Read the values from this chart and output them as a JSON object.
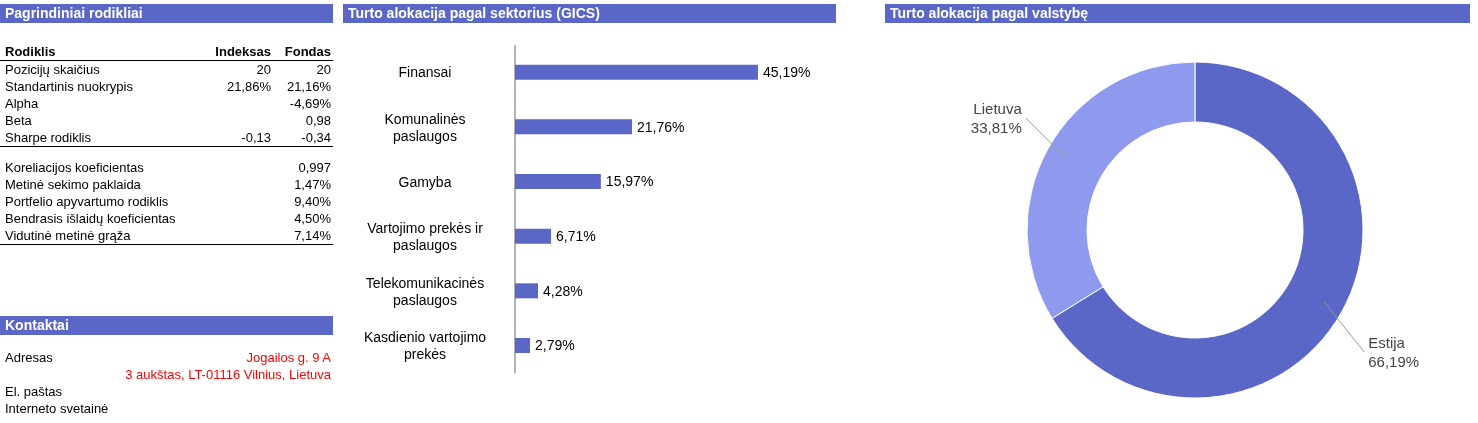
{
  "chart_data": [
    {
      "type": "other",
      "title": "Pagrindiniai rodikliai",
      "annotations": [
        "Rodiklis",
        "Indeksas",
        "Fondas",
        "Pozicijų skaičius",
        "20",
        "20",
        "Standartinis nuokrypis",
        "21,86%",
        "21,16%",
        "Alpha",
        null,
        "-4,69%",
        "Beta",
        null,
        "0,98",
        "Sharpe rodiklis",
        "-0,13",
        "-0,34",
        "Koreliacijos koeficientas",
        null,
        "0,997",
        "Metinė sekimo paklaida",
        null,
        "1,47%",
        "Portfelio apyvartumo rodiklis",
        null,
        "9,40%",
        "Bendrasis išlaidų koeficientas",
        null,
        "4,50%",
        "Vidutinė metinė grąža",
        null,
        "7,14%"
      ]
    },
    {
      "type": "other",
      "title": "Kontaktai",
      "annotations": [
        "Adresas",
        "Jogailos g. 9 A",
        null,
        "3 aukštas, LT-01116 Vilnius, Lietuva",
        "El. paštas",
        null,
        "Interneto svetainė",
        null
      ]
    },
    {
      "type": "bar",
      "orientation": "horizontal",
      "title": "Turto alokacija pagal sektorius (GICS)",
      "categories": [
        "Finansai",
        "Komunalinės paslaugos",
        "Gamyba",
        "Vartojimo prekės ir paslaugos",
        "Telekomunikacinės paslaugos",
        "Kasdienio vartojimo prekės"
      ],
      "values": [
        45.19,
        21.76,
        15.97,
        6.71,
        4.28,
        2.79
      ],
      "value_labels": [
        "45,19%",
        "21,76%",
        "15,97%",
        "6,71%",
        "4,28%",
        "2,79%"
      ],
      "color": "#5b67c7"
    },
    {
      "type": "donut",
      "title": "Turto alokacija pagal valstybę",
      "categories": [
        "Estija",
        "Lietuva"
      ],
      "values": [
        66.19,
        33.81
      ],
      "value_labels": [
        "66,19%",
        "33,81%"
      ],
      "colors": [
        "#5b67c7",
        "#8f9aee"
      ]
    }
  ]
}
